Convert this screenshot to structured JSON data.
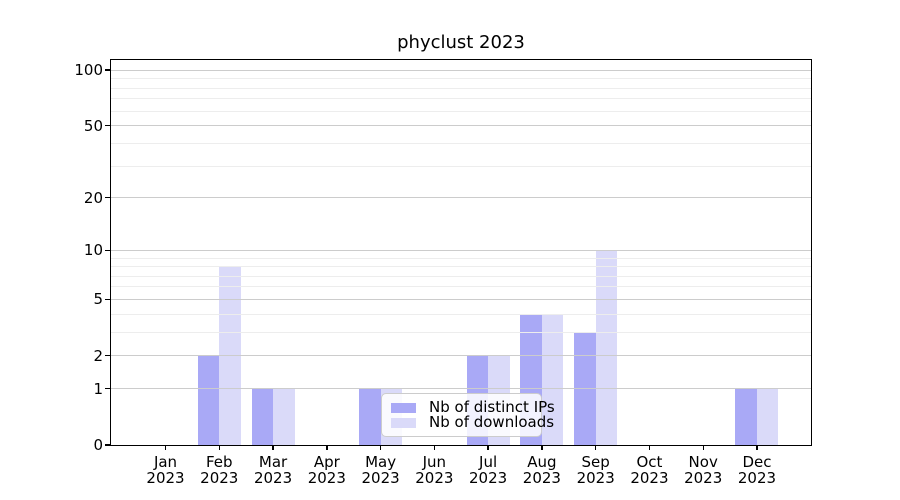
{
  "title": "phyclust 2023",
  "chart_data": {
    "type": "bar",
    "title": "phyclust 2023",
    "categories": [
      "Jan 2023",
      "Feb 2023",
      "Mar 2023",
      "Apr 2023",
      "May 2023",
      "Jun 2023",
      "Jul 2023",
      "Aug 2023",
      "Sep 2023",
      "Oct 2023",
      "Nov 2023",
      "Dec 2023"
    ],
    "series": [
      {
        "name": "Nb of distinct IPs",
        "color": "#a9a9f6",
        "values": [
          0,
          2,
          1,
          0,
          1,
          0,
          2,
          4,
          3,
          0,
          0,
          1
        ]
      },
      {
        "name": "Nb of downloads",
        "color": "#dadaf9",
        "values": [
          0,
          8,
          1,
          0,
          1,
          0,
          2,
          4,
          10,
          0,
          0,
          1
        ]
      }
    ],
    "xlabel": "",
    "ylabel": "",
    "yscale": "log10(1+x)",
    "yticks": [
      0,
      1,
      2,
      5,
      10,
      20,
      50,
      100
    ],
    "minor_gridlines": [
      3,
      4,
      6,
      7,
      8,
      9,
      30,
      40,
      60,
      70,
      80,
      90
    ],
    "ylim": [
      0,
      113
    ],
    "grid": true,
    "legend_position": "lower center"
  },
  "colors": {
    "grid_major": "#cccccc",
    "grid_minor": "#ededed",
    "axis": "#000000",
    "background": "#ffffff"
  }
}
